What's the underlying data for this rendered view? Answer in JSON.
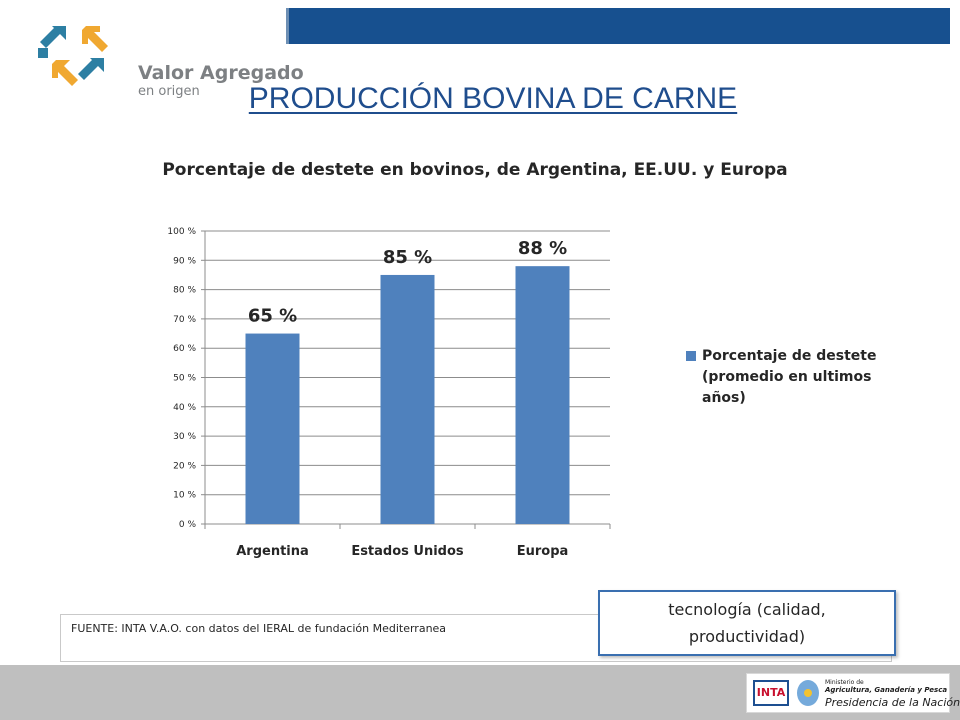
{
  "header": {
    "logo_text": "Valor Agregado",
    "logo_subtext": "en origen",
    "title": "PRODUCCIÓN BOVINA DE CARNE"
  },
  "chart_data": {
    "type": "bar",
    "title": "Porcentaje de destete en bovinos, de  Argentina, EE.UU. y Europa",
    "categories": [
      "Argentina",
      "Estados Unidos",
      "Europa"
    ],
    "series": [
      {
        "name": "Porcentaje de destete (promedio en ultimos años)",
        "values": [
          65,
          85,
          88
        ],
        "data_labels": [
          "65 %",
          "85 %",
          "88 %"
        ],
        "color": "#4f81bd"
      }
    ],
    "ylim": [
      0,
      100
    ],
    "y_ticks": [
      "0 %",
      "10 %",
      "20 %",
      "30 %",
      "40 %",
      "50 %",
      "60 %",
      "70 %",
      "80 %",
      "90 %",
      "100 %"
    ],
    "grid": true,
    "legend_position": "right"
  },
  "legend": {
    "label": "Porcentaje de destete (promedio en ultimos años)"
  },
  "source": {
    "text": "FUENTE: INTA V.A.O. con datos del IERAL de fundación Mediterranea"
  },
  "callout": {
    "line1": "tecnología (calidad,",
    "line2": "productividad)"
  },
  "footer": {
    "inta_label": "INTA",
    "ministry_line1": "Ministerio de",
    "ministry_line2": "Agricultura, Ganadería y Pesca",
    "ministry_line3": "Presidencia de la Nación"
  },
  "colors": {
    "accent": "#17508f",
    "bar": "#4f81bd",
    "title": "#1f4d8d"
  }
}
